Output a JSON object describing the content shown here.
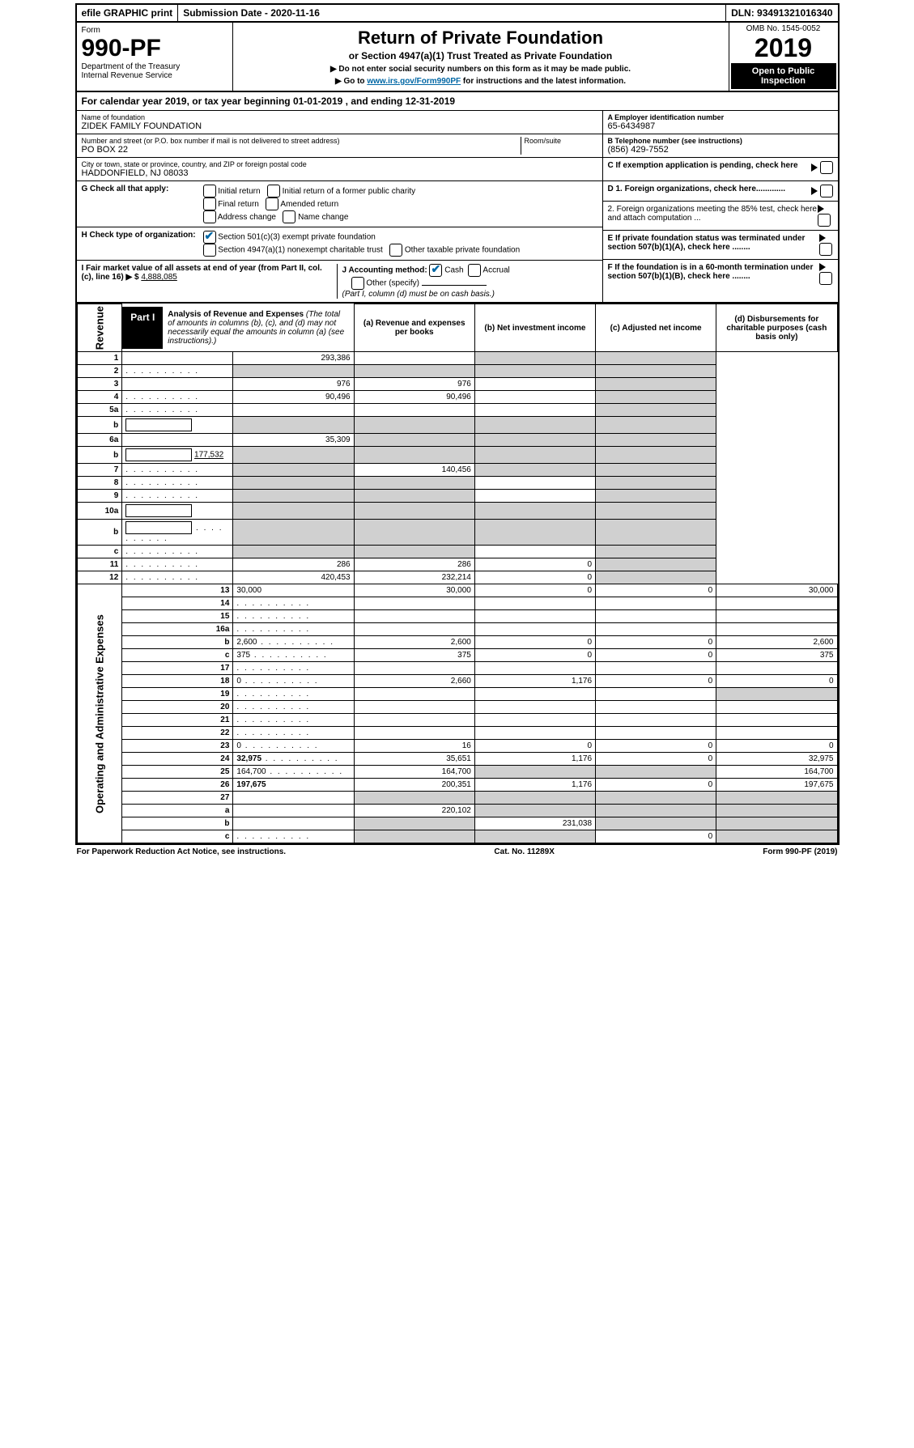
{
  "topstrip": {
    "efile": "efile GRAPHIC print",
    "subdate": "Submission Date - 2020-11-16",
    "dln": "DLN: 93491321016340"
  },
  "header": {
    "form_label": "Form",
    "form_no": "990-PF",
    "dept": "Department of the Treasury",
    "irs": "Internal Revenue Service",
    "title": "Return of Private Foundation",
    "subtitle": "or Section 4947(a)(1) Trust Treated as Private Foundation",
    "note1": "▶ Do not enter social security numbers on this form as it may be made public.",
    "note2_pre": "▶ Go to ",
    "note2_link": "www.irs.gov/Form990PF",
    "note2_post": " for instructions and the latest information.",
    "omb": "OMB No. 1545-0052",
    "year": "2019",
    "open": "Open to Public Inspection"
  },
  "calendar": "For calendar year 2019, or tax year beginning 01-01-2019           , and ending 12-31-2019",
  "entity": {
    "name_lbl": "Name of foundation",
    "name": "ZIDEK FAMILY FOUNDATION",
    "addr_lbl": "Number and street (or P.O. box number if mail is not delivered to street address)",
    "addr": "PO BOX 22",
    "room_lbl": "Room/suite",
    "room": "",
    "city_lbl": "City or town, state or province, country, and ZIP or foreign postal code",
    "city": "HADDONFIELD, NJ  08033",
    "ein_lbl": "A Employer identification number",
    "ein": "65-6434987",
    "phone_lbl": "B Telephone number (see instructions)",
    "phone": "(856) 429-7552",
    "c_lbl": "C If exemption application is pending, check here",
    "d1": "D 1. Foreign organizations, check here.............",
    "d2": "2. Foreign organizations meeting the 85% test, check here and attach computation ...",
    "e_lbl": "E  If private foundation status was terminated under section 507(b)(1)(A), check here ........",
    "f_lbl": "F  If the foundation is in a 60-month termination under section 507(b)(1)(B), check here ........"
  },
  "checks": {
    "g_label": "G Check all that apply:",
    "g_opts": [
      "Initial return",
      "Initial return of a former public charity",
      "Final return",
      "Amended return",
      "Address change",
      "Name change"
    ],
    "h_label": "H Check type of organization:",
    "h1": "Section 501(c)(3) exempt private foundation",
    "h2": "Section 4947(a)(1) nonexempt charitable trust",
    "h3": "Other taxable private foundation",
    "i_label": "I Fair market value of all assets at end of year (from Part II, col. (c), line 16) ▶ $",
    "i_val": "4,888,085",
    "j_label": "J Accounting method:",
    "j_cash": "Cash",
    "j_accrual": "Accrual",
    "j_other": "Other (specify)",
    "j_note": "(Part I, column (d) must be on cash basis.)"
  },
  "part1": {
    "tab": "Part I",
    "title": "Analysis of Revenue and Expenses",
    "title_note": " (The total of amounts in columns (b), (c), and (d) may not necessarily equal the amounts in column (a) (see instructions).)",
    "col_a": "(a)   Revenue and expenses per books",
    "col_b": "(b)  Net investment income",
    "col_c": "(c)  Adjusted net income",
    "col_d": "(d)  Disbursements for charitable purposes (cash basis only)"
  },
  "side_labels": {
    "rev": "Revenue",
    "exp": "Operating and Administrative Expenses"
  },
  "rows": [
    {
      "n": "1",
      "d": "",
      "a": "293,386",
      "b": "",
      "c": "",
      "bg": "",
      "cg": "g",
      "dg": "g"
    },
    {
      "n": "2",
      "d": "",
      "a": "",
      "b": "",
      "c": "",
      "ag": "g",
      "bg": "g",
      "cg": "g",
      "dg": "g",
      "dots": true
    },
    {
      "n": "3",
      "d": "",
      "a": "976",
      "b": "976",
      "c": "",
      "dg": "g"
    },
    {
      "n": "4",
      "d": "",
      "a": "90,496",
      "b": "90,496",
      "c": "",
      "dg": "g",
      "dots": true
    },
    {
      "n": "5a",
      "d": "",
      "a": "",
      "b": "",
      "c": "",
      "dg": "g",
      "dots": true
    },
    {
      "n": "b",
      "d": "",
      "a": "",
      "b": "",
      "c": "",
      "blank": true,
      "ag": "g",
      "bg": "g",
      "cg": "g",
      "dg": "g"
    },
    {
      "n": "6a",
      "d": "",
      "a": "35,309",
      "b": "",
      "c": "",
      "bg": "g",
      "cg": "g",
      "dg": "g"
    },
    {
      "n": "b",
      "d": "",
      "a": "",
      "b": "",
      "c": "",
      "blank": true,
      "bval": "177,532",
      "ag": "g",
      "bg": "g",
      "cg": "g",
      "dg": "g"
    },
    {
      "n": "7",
      "d": "",
      "a": "",
      "b": "140,456",
      "c": "",
      "ag": "g",
      "cg": "g",
      "dg": "g",
      "dots": true
    },
    {
      "n": "8",
      "d": "",
      "a": "",
      "b": "",
      "c": "",
      "ag": "g",
      "bg": "g",
      "dg": "g",
      "dots": true
    },
    {
      "n": "9",
      "d": "",
      "a": "",
      "b": "",
      "c": "",
      "ag": "g",
      "bg": "g",
      "dg": "g",
      "dots": true
    },
    {
      "n": "10a",
      "d": "",
      "a": "",
      "b": "",
      "c": "",
      "blank": true,
      "ag": "g",
      "bg": "g",
      "cg": "g",
      "dg": "g"
    },
    {
      "n": "b",
      "d": "",
      "a": "",
      "b": "",
      "c": "",
      "blank": true,
      "ag": "g",
      "bg": "g",
      "cg": "g",
      "dg": "g",
      "dots": true
    },
    {
      "n": "c",
      "d": "",
      "a": "",
      "b": "",
      "c": "",
      "ag": "g",
      "bg": "g",
      "dg": "g",
      "dots": true
    },
    {
      "n": "11",
      "d": "",
      "a": "286",
      "b": "286",
      "c": "0",
      "dg": "g",
      "dots": true
    },
    {
      "n": "12",
      "d": "",
      "a": "420,453",
      "b": "232,214",
      "c": "0",
      "dg": "g",
      "bold": true,
      "dots": true
    },
    {
      "n": "13",
      "d": "30,000",
      "a": "30,000",
      "b": "0",
      "c": "0"
    },
    {
      "n": "14",
      "d": "",
      "a": "",
      "b": "",
      "c": "",
      "dots": true
    },
    {
      "n": "15",
      "d": "",
      "a": "",
      "b": "",
      "c": "",
      "dots": true
    },
    {
      "n": "16a",
      "d": "",
      "a": "",
      "b": "",
      "c": "",
      "dots": true
    },
    {
      "n": "b",
      "d": "2,600",
      "a": "2,600",
      "b": "0",
      "c": "0",
      "dots": true
    },
    {
      "n": "c",
      "d": "375",
      "a": "375",
      "b": "0",
      "c": "0",
      "dots": true
    },
    {
      "n": "17",
      "d": "",
      "a": "",
      "b": "",
      "c": "",
      "dots": true
    },
    {
      "n": "18",
      "d": "0",
      "a": "2,660",
      "b": "1,176",
      "c": "0",
      "dots": true
    },
    {
      "n": "19",
      "d": "",
      "a": "",
      "b": "",
      "c": "",
      "dg": "g",
      "dots": true
    },
    {
      "n": "20",
      "d": "",
      "a": "",
      "b": "",
      "c": "",
      "dots": true
    },
    {
      "n": "21",
      "d": "",
      "a": "",
      "b": "",
      "c": "",
      "dots": true
    },
    {
      "n": "22",
      "d": "",
      "a": "",
      "b": "",
      "c": "",
      "dots": true
    },
    {
      "n": "23",
      "d": "0",
      "a": "16",
      "b": "0",
      "c": "0",
      "dots": true
    },
    {
      "n": "24",
      "d": "32,975",
      "a": "35,651",
      "b": "1,176",
      "c": "0",
      "bold": true,
      "dots": true
    },
    {
      "n": "25",
      "d": "164,700",
      "a": "164,700",
      "b": "",
      "c": "",
      "bg": "g",
      "cg": "g",
      "dots": true
    },
    {
      "n": "26",
      "d": "197,675",
      "a": "200,351",
      "b": "1,176",
      "c": "0",
      "bold": true
    },
    {
      "n": "27",
      "d": "",
      "a": "",
      "b": "",
      "c": "",
      "ag": "g",
      "bg": "g",
      "cg": "g",
      "dg": "g"
    },
    {
      "n": "a",
      "d": "",
      "a": "220,102",
      "b": "",
      "c": "",
      "bg": "g",
      "cg": "g",
      "dg": "g",
      "bold": true
    },
    {
      "n": "b",
      "d": "",
      "a": "",
      "b": "231,038",
      "c": "",
      "ag": "g",
      "cg": "g",
      "dg": "g",
      "bold": true
    },
    {
      "n": "c",
      "d": "",
      "a": "",
      "b": "",
      "c": "0",
      "ag": "g",
      "bg": "g",
      "dg": "g",
      "bold": true,
      "dots": true
    }
  ],
  "footer": {
    "left": "For Paperwork Reduction Act Notice, see instructions.",
    "mid": "Cat. No. 11289X",
    "right": "Form 990-PF (2019)"
  }
}
